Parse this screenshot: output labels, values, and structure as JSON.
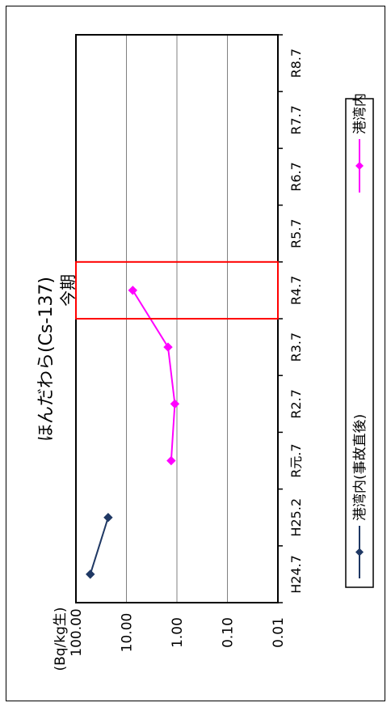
{
  "chart_data": {
    "type": "line",
    "title": "ほんだわら(Cs-137)",
    "ylabel": "(Bq/kg生)",
    "y_scale": "log",
    "ylim": [
      0.01,
      100
    ],
    "y_ticks": [
      "100.00",
      "10.00",
      "1.00",
      "0.10",
      "0.01"
    ],
    "x_ticks": [
      "H24.7",
      "H25.2",
      "R元.7",
      "R2.7",
      "R3.7",
      "R4.7",
      "R5.7",
      "R6.7",
      "R7.7",
      "R8.7"
    ],
    "series": [
      {
        "name": "港湾内(事故直後)",
        "color": "#1f3864",
        "marker": "diamond",
        "points": [
          {
            "x": "H24.7",
            "y": 52
          },
          {
            "x": "H25.2",
            "y": 23
          }
        ]
      },
      {
        "name": "港湾内",
        "color": "#ff00ff",
        "marker": "diamond",
        "points": [
          {
            "x": "R元.7",
            "y": 1.3
          },
          {
            "x": "R2.7",
            "y": 1.1
          },
          {
            "x": "R3.7",
            "y": 1.5
          },
          {
            "x": "R4.7",
            "y": 7.5
          }
        ]
      }
    ],
    "highlight": {
      "x": "R4.7",
      "label": "今期",
      "color": "#ff0000"
    },
    "legend_position": "right",
    "grid": true
  }
}
